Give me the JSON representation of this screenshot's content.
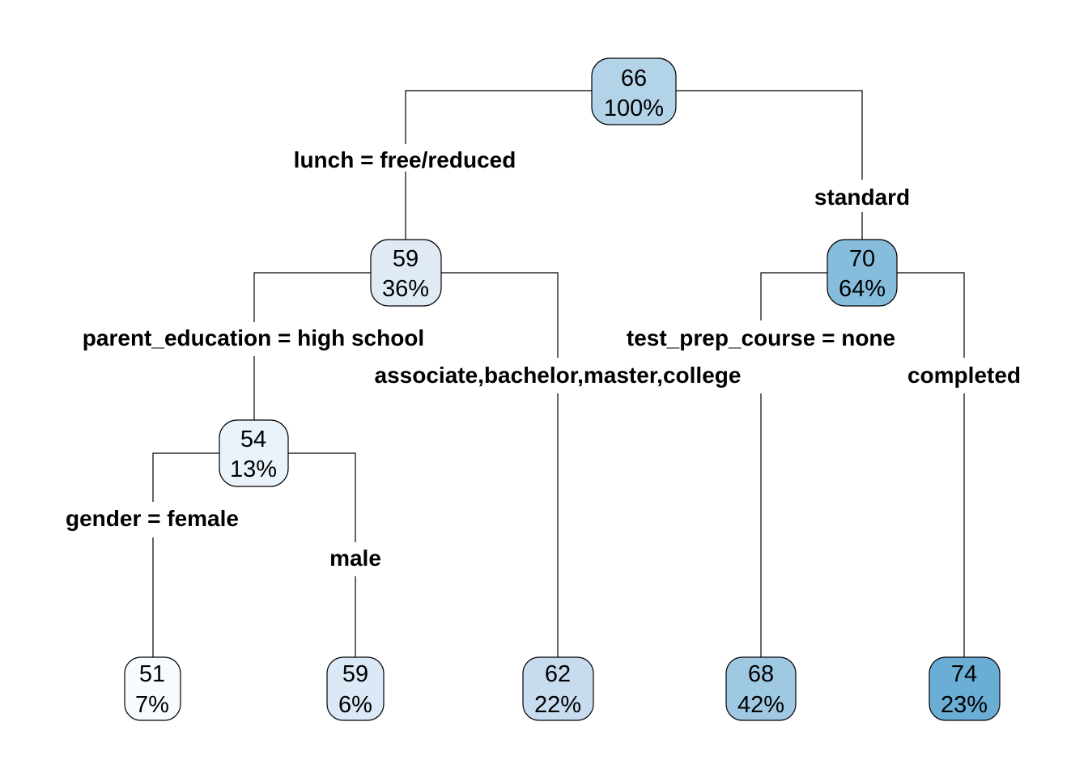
{
  "tree": {
    "nodes": [
      {
        "id": "root",
        "value": "66",
        "percent": "100%",
        "color": "#b3d3e8"
      },
      {
        "id": "n-free",
        "value": "59",
        "percent": "36%",
        "color": "#dfeaf5"
      },
      {
        "id": "n-standard",
        "value": "70",
        "percent": "64%",
        "color": "#86bcdc"
      },
      {
        "id": "n-highschool",
        "value": "54",
        "percent": "13%",
        "color": "#eaf2fa"
      },
      {
        "id": "leaf-female",
        "value": "51",
        "percent": "7%",
        "color": "#f7fbff"
      },
      {
        "id": "leaf-male",
        "value": "59",
        "percent": "6%",
        "color": "#dbe8f5"
      },
      {
        "id": "leaf-other-edu",
        "value": "62",
        "percent": "22%",
        "color": "#c8dcef"
      },
      {
        "id": "leaf-prep-none",
        "value": "68",
        "percent": "42%",
        "color": "#9fc9e2"
      },
      {
        "id": "leaf-prep-completed",
        "value": "74",
        "percent": "23%",
        "color": "#6aaed6"
      }
    ],
    "splits": {
      "lunch_left": "lunch = free/reduced",
      "lunch_right": "standard",
      "parent_left": "parent_education = high school",
      "parent_right": "associate,bachelor,master,college",
      "gender_left": "gender = female",
      "gender_right": "male",
      "prep_left": "test_prep_course = none",
      "prep_right": "completed"
    }
  }
}
